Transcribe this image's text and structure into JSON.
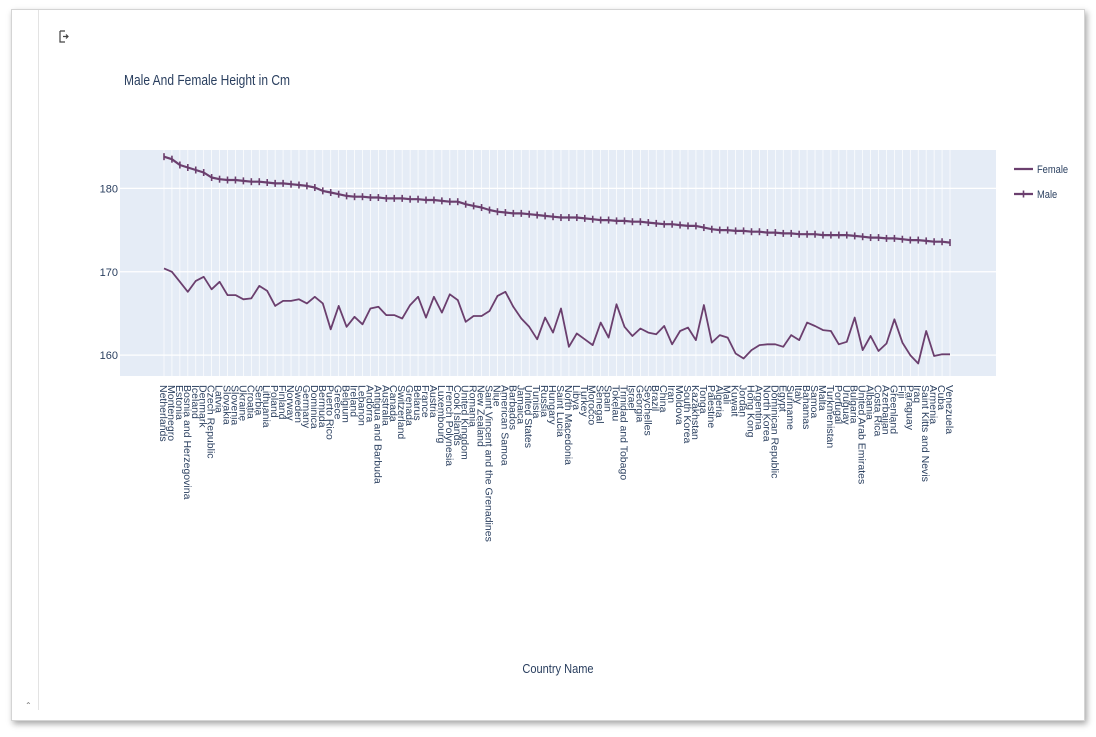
{
  "chart_data": {
    "type": "line",
    "title": "Male And Female Height in Cm",
    "xlabel": "Country Name",
    "ylabel": "",
    "ylim": [
      157.5,
      184.6
    ],
    "yticks": [
      160,
      170,
      180
    ],
    "grid": true,
    "legend_position": "top-right",
    "colors": {
      "series": "#6b3f6e",
      "plot_bg": "#e5ecf6",
      "text": "#2a3f5f"
    },
    "categories": [
      "Netherlands",
      "Montenegro",
      "Estonia",
      "Bosnia and Herzegovina",
      "Iceland",
      "Denmark",
      "Czech Republic",
      "Latvia",
      "Slovakia",
      "Slovenia",
      "Ukraine",
      "Croatia",
      "Serbia",
      "Lithuania",
      "Poland",
      "Finland",
      "Norway",
      "Sweden",
      "Germany",
      "Dominica",
      "Bermuda",
      "Puerto Rico",
      "Greece",
      "Belgium",
      "Ireland",
      "Lebanon",
      "Andorra",
      "Antigua and Barbuda",
      "Australia",
      "Canada",
      "Switzerland",
      "Grenada",
      "Belarus",
      "France",
      "Austria",
      "Luxembourg",
      "French Polynesia",
      "Cook Islands",
      "United Kingdom",
      "Romania",
      "New Zealand",
      "Saint Vincent and the Grenadines",
      "Niue",
      "American Samoa",
      "Barbados",
      "Jamaica",
      "United States",
      "Tunisia",
      "Russia",
      "Hungary",
      "Saint Lucia",
      "North Macedonia",
      "Libya",
      "Turkey",
      "Morocco",
      "Senegal",
      "Spain",
      "Tokelau",
      "Trinidad and Tobago",
      "Israel",
      "Georgia",
      "Seychelles",
      "Brazil",
      "China",
      "Iran",
      "Moldova",
      "South Korea",
      "Kazakhstan",
      "Tonga",
      "Palestine",
      "Algeria",
      "Mali",
      "Kuwait",
      "Jordan",
      "Hong Kong",
      "Argentina",
      "North Korea",
      "Dominican Republic",
      "Egypt",
      "Suriname",
      "Italy",
      "Bahamas",
      "Samoa",
      "Malta",
      "Turkmenistan",
      "Portugal",
      "Uruguay",
      "Bulgaria",
      "United Arab Emirates",
      "Albania",
      "Costa Rica",
      "Azerbaijan",
      "Greenland",
      "Fiji",
      "Paraguay",
      "Iraq",
      "Saint Kitts and Nevis",
      "Armenia",
      "Cuba",
      "Venezuela"
    ],
    "series": [
      {
        "name": "Female",
        "values": [
          170.4,
          170.0,
          168.8,
          167.6,
          168.9,
          169.4,
          167.9,
          168.8,
          167.2,
          167.2,
          166.7,
          166.8,
          168.3,
          167.7,
          165.9,
          166.5,
          166.5,
          166.7,
          166.2,
          167.0,
          166.2,
          163.1,
          165.9,
          163.4,
          164.6,
          163.7,
          165.6,
          165.8,
          164.8,
          164.8,
          164.4,
          166.0,
          167.0,
          164.5,
          167.0,
          165.1,
          167.3,
          166.6,
          164.0,
          164.7,
          164.7,
          165.3,
          167.1,
          167.6,
          165.8,
          164.4,
          163.4,
          161.9,
          164.5,
          162.7,
          165.6,
          161.0,
          162.6,
          161.9,
          161.2,
          163.9,
          162.1,
          166.1,
          163.4,
          162.3,
          163.2,
          162.7,
          162.5,
          163.5,
          161.3,
          162.9,
          163.3,
          161.8,
          166.0,
          161.5,
          162.4,
          162.1,
          160.2,
          159.6,
          160.6,
          161.2,
          161.3,
          161.3,
          161.0,
          162.4,
          161.8,
          163.9,
          163.5,
          163.0,
          162.9,
          161.3,
          161.6,
          164.5,
          160.6,
          162.3,
          160.5,
          161.4,
          164.3,
          161.5,
          160.0,
          159.0,
          162.9,
          159.9,
          160.1,
          160.1
        ]
      },
      {
        "name": "Male",
        "values": [
          183.8,
          183.5,
          182.8,
          182.5,
          182.2,
          181.9,
          181.3,
          181.1,
          181.0,
          181.0,
          180.9,
          180.8,
          180.8,
          180.7,
          180.6,
          180.6,
          180.5,
          180.4,
          180.3,
          180.1,
          179.7,
          179.5,
          179.3,
          179.1,
          179.0,
          179.0,
          178.9,
          178.9,
          178.8,
          178.8,
          178.8,
          178.7,
          178.7,
          178.6,
          178.6,
          178.5,
          178.4,
          178.4,
          178.1,
          177.9,
          177.7,
          177.4,
          177.2,
          177.1,
          177.0,
          177.0,
          176.9,
          176.8,
          176.7,
          176.6,
          176.5,
          176.5,
          176.5,
          176.4,
          176.3,
          176.2,
          176.2,
          176.1,
          176.1,
          176.0,
          176.0,
          175.9,
          175.8,
          175.7,
          175.7,
          175.6,
          175.5,
          175.5,
          175.3,
          175.1,
          175.0,
          175.0,
          174.9,
          174.9,
          174.8,
          174.8,
          174.7,
          174.7,
          174.6,
          174.6,
          174.5,
          174.5,
          174.5,
          174.4,
          174.4,
          174.4,
          174.4,
          174.3,
          174.2,
          174.1,
          174.1,
          174.0,
          174.0,
          173.9,
          173.8,
          173.8,
          173.7,
          173.6,
          173.6,
          173.5
        ]
      }
    ]
  }
}
